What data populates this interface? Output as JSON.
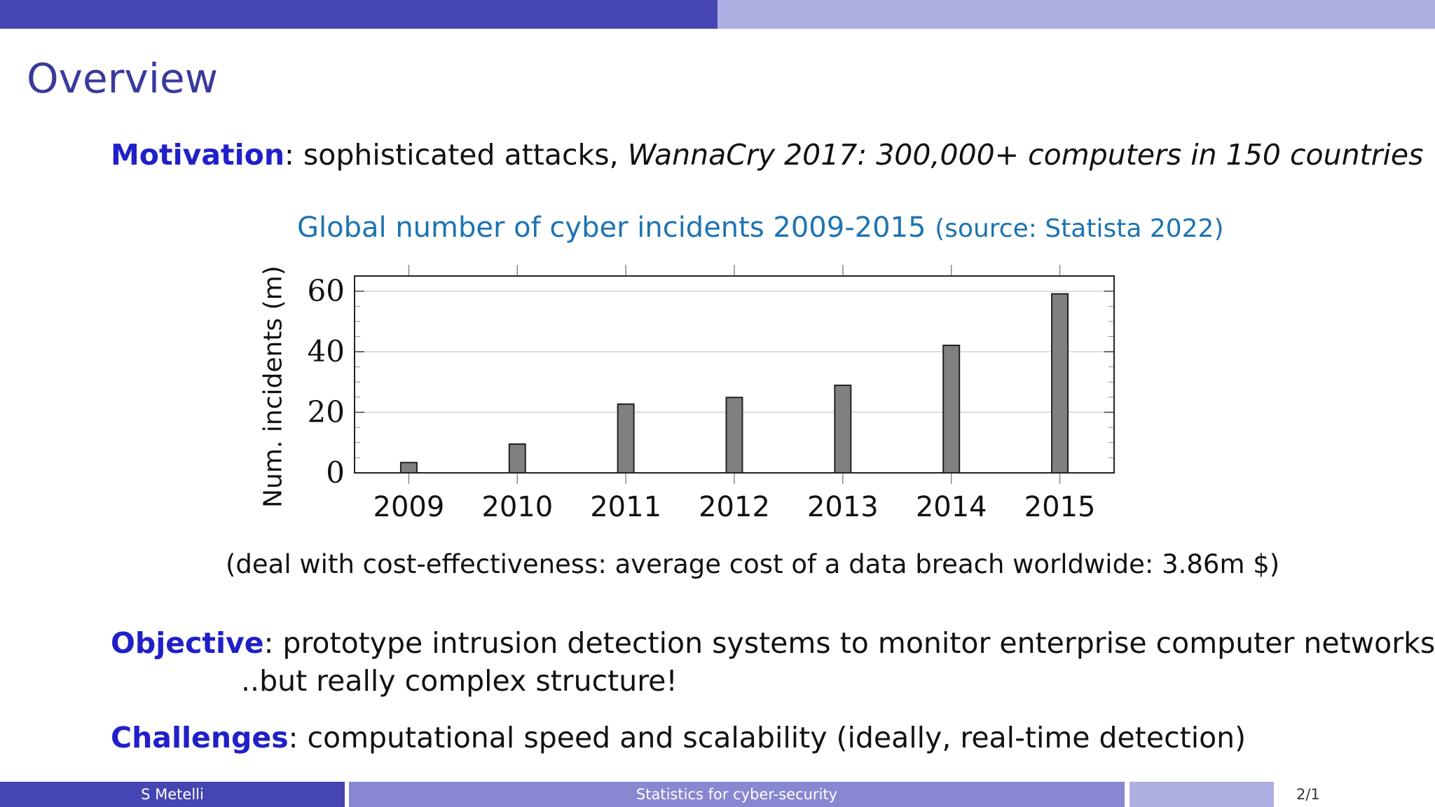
{
  "slide": {
    "title": "Overview",
    "motivation": {
      "label": "Motivation",
      "sep": ":",
      "text": " sophisticated attacks, ",
      "emph": "WannaCry 2017: 300,000+ computers in 150 countries"
    },
    "chart_title": "Global number of cyber incidents 2009-2015",
    "chart_source": "(source: Statista 2022)",
    "note": "(deal with cost-effectiveness: average cost of a data breach worldwide: 3.86m $)",
    "objective": {
      "label": "Objective",
      "sep": ":",
      "text": " prototype intrusion detection systems to monitor enterprise computer networks",
      "cont": "..but really complex structure!"
    },
    "challenges": {
      "label": "Challenges",
      "sep": ":",
      "text": " computational speed and scalability (ideally, real-time detection)"
    }
  },
  "chart_data": {
    "type": "bar",
    "categories": [
      "2009",
      "2010",
      "2011",
      "2012",
      "2013",
      "2014",
      "2015"
    ],
    "values": [
      3.4,
      9.5,
      22.7,
      24.9,
      28.9,
      42.1,
      59.1
    ],
    "ylabel": "Num. incidents (m)",
    "xlabel": "",
    "ylim": [
      0,
      65
    ],
    "yticks": [
      0,
      20,
      40,
      60
    ],
    "grid": "horizontal",
    "bar_color": "#808080"
  },
  "footer": {
    "author": "S Metelli",
    "course": "Statistics for cyber-security",
    "page": "2/1"
  },
  "colors": {
    "bar_dark": "#4545b4",
    "bar_light": "#aeaee3",
    "title": "#3a3a9c",
    "keyword": "#2020c8",
    "chart_title": "#1d73b2"
  }
}
